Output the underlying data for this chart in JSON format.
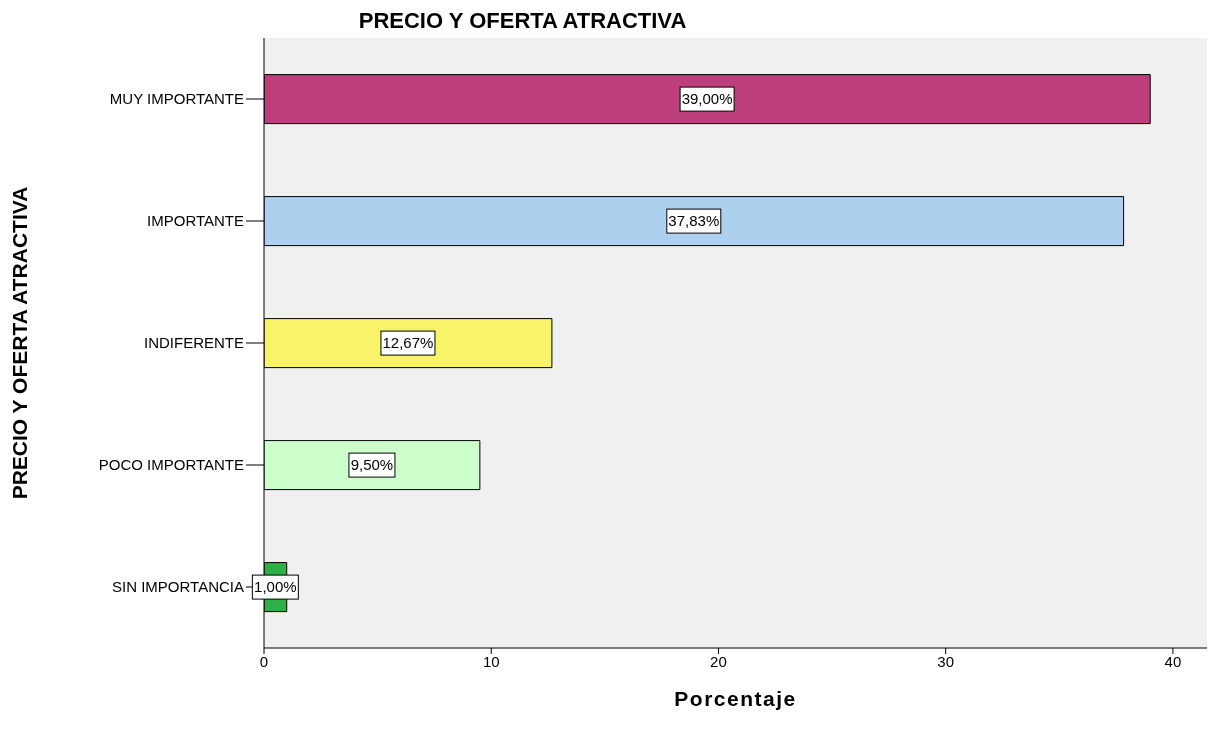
{
  "chart_data": {
    "type": "bar",
    "orientation": "horizontal",
    "title": "PRECIO Y OFERTA ATRACTIVA",
    "xlabel": "Porcentaje",
    "ylabel": "PRECIO Y OFERTA ATRACTIVA",
    "categories": [
      "MUY IMPORTANTE",
      "IMPORTANTE",
      "INDIFERENTE",
      "POCO IMPORTANTE",
      "SIN IMPORTANCIA"
    ],
    "values": [
      39.0,
      37.83,
      12.67,
      9.5,
      1.0
    ],
    "value_labels": [
      "39,00%",
      "37,83%",
      "12,67%",
      "9,50%",
      "1,00%"
    ],
    "colors": [
      "#bc3f7b",
      "#acd0ee",
      "#f9f36a",
      "#ccffcc",
      "#2eaf48"
    ],
    "xlim": [
      0,
      41.5
    ],
    "xticks": [
      0,
      10,
      20,
      30,
      40
    ],
    "grid": false
  }
}
